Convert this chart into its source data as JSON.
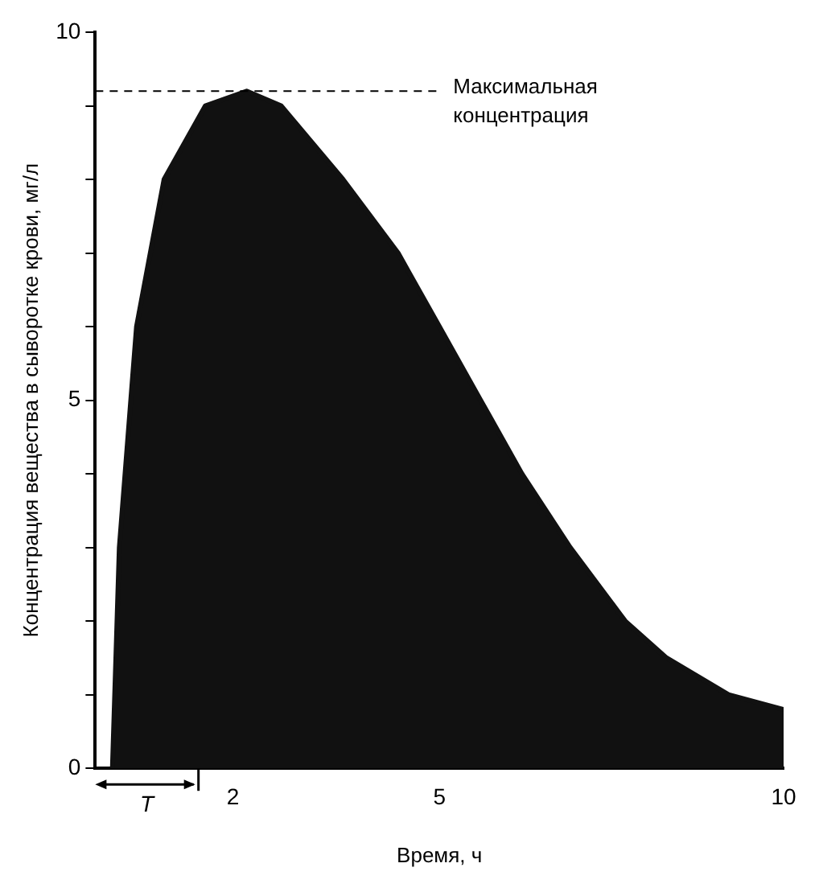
{
  "chart_data": {
    "type": "area",
    "xlabel": "Время, ч",
    "ylabel": "Концентрация вещества в сыворотке крови, мг/л",
    "x": [
      0.25,
      0.35,
      0.6,
      1.0,
      1.6,
      2.2,
      2.7,
      3.6,
      4.4,
      5.0,
      5.6,
      6.2,
      6.9,
      7.7,
      8.3,
      9.2,
      10
    ],
    "series": [
      {
        "color": "#111111",
        "values": [
          0,
          3,
          6,
          8,
          9,
          9.2,
          9,
          8,
          7,
          6,
          5,
          4,
          3,
          2,
          1.5,
          1,
          0.8
        ]
      }
    ],
    "xlim": [
      0,
      10
    ],
    "xticks": [
      2,
      5,
      10
    ],
    "ylim": [
      0,
      10
    ],
    "yticks": [
      0,
      {
        "value": 1,
        "label": null
      },
      {
        "value": 2,
        "label": null
      },
      {
        "value": 3,
        "label": null
      },
      {
        "value": 4,
        "label": null
      },
      5,
      {
        "value": 6,
        "label": null
      },
      {
        "value": 7,
        "label": null
      },
      {
        "value": 8,
        "label": null
      },
      {
        "value": 9,
        "label": null
      },
      10
    ],
    "ref_lines": [
      {
        "axis": "y",
        "value": 9.2,
        "label": "Максимальная концентрация",
        "line_style": "dashed"
      }
    ],
    "annotations": [
      {
        "text": "T",
        "x": 1.5,
        "y": 0
      }
    ],
    "grid": false,
    "legend": false
  }
}
